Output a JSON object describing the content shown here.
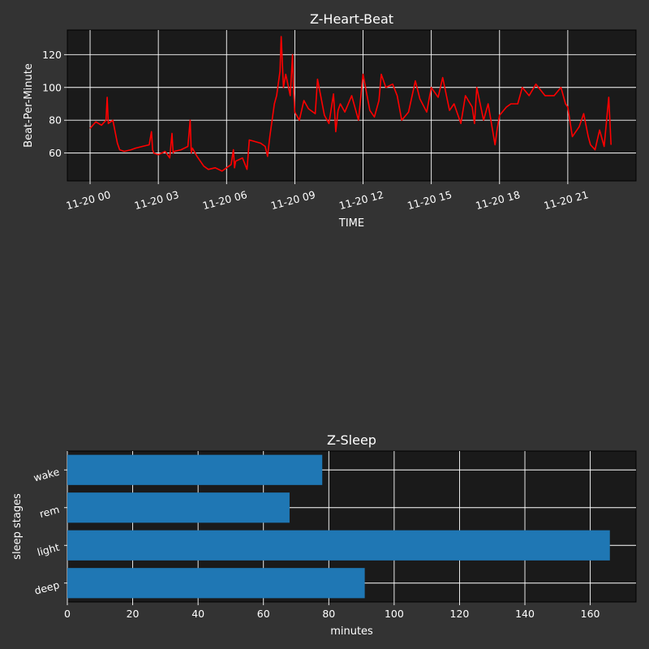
{
  "chart_data": [
    {
      "type": "line",
      "title": "Z-Heart-Beat",
      "xlabel": "TIME",
      "ylabel": "Beat-Per-Minute",
      "grid": true,
      "line_color": "#ff0000",
      "background": "#1a1a1a",
      "xlim": [
        -1.0,
        24.0
      ],
      "ylim": [
        43,
        135
      ],
      "x_ticks": [
        0,
        3,
        6,
        9,
        12,
        15,
        18,
        21
      ],
      "x_tick_labels": [
        "11-20 00",
        "11-20 03",
        "11-20 06",
        "11-20 09",
        "11-20 12",
        "11-20 15",
        "11-20 18",
        "11-20 21"
      ],
      "y_ticks": [
        60,
        80,
        100,
        120
      ],
      "y_tick_labels": [
        "60",
        "80",
        "100",
        "120"
      ],
      "series": [
        {
          "x": [
            0.0,
            0.25,
            0.5,
            0.7,
            0.75,
            0.8,
            1.0,
            1.2,
            1.3,
            1.5,
            1.8,
            2.0,
            2.3,
            2.6,
            2.7,
            2.75,
            2.8,
            3.0,
            3.3,
            3.5,
            3.6,
            3.65,
            3.7,
            4.0,
            4.3,
            4.4,
            4.45,
            4.5,
            4.7,
            5.0,
            5.2,
            5.5,
            5.8,
            6.0,
            6.2,
            6.3,
            6.35,
            6.4,
            6.7,
            6.9,
            7.0,
            7.5,
            7.7,
            7.8,
            7.9,
            8.0,
            8.1,
            8.2,
            8.35,
            8.4,
            8.5,
            8.6,
            8.8,
            8.9,
            8.95,
            9.0,
            9.2,
            9.4,
            9.6,
            9.9,
            10.0,
            10.3,
            10.5,
            10.7,
            10.8,
            10.9,
            11.0,
            11.2,
            11.5,
            11.8,
            12.0,
            12.3,
            12.5,
            12.7,
            12.8,
            13.0,
            13.3,
            13.5,
            13.7,
            14.0,
            14.3,
            14.5,
            14.8,
            15.0,
            15.3,
            15.5,
            15.8,
            16.0,
            16.3,
            16.5,
            16.8,
            16.9,
            17.0,
            17.3,
            17.5,
            17.8,
            17.9,
            18.0,
            18.3,
            18.5,
            18.8,
            19.0,
            19.3,
            19.6,
            20.0,
            20.4,
            20.7,
            20.9,
            21.0,
            21.2,
            21.5,
            21.7,
            21.9,
            22.0,
            22.2,
            22.4,
            22.6,
            22.8,
            22.9
          ],
          "y": [
            75,
            79,
            77,
            80,
            94,
            78,
            80,
            66,
            62,
            61,
            62,
            63,
            64,
            65,
            73,
            62,
            60,
            59,
            61,
            57,
            72,
            60,
            61,
            62,
            64,
            80,
            60,
            63,
            58,
            52,
            50,
            51,
            49,
            51,
            53,
            62,
            51,
            55,
            57,
            50,
            68,
            66,
            64,
            58,
            70,
            80,
            90,
            95,
            110,
            131,
            100,
            108,
            95,
            120,
            98,
            85,
            80,
            92,
            87,
            84,
            105,
            83,
            78,
            96,
            73,
            86,
            90,
            85,
            95,
            80,
            108,
            86,
            82,
            92,
            108,
            100,
            102,
            95,
            80,
            85,
            104,
            93,
            85,
            100,
            94,
            106,
            86,
            90,
            78,
            95,
            88,
            78,
            100,
            80,
            90,
            65,
            75,
            83,
            88,
            90,
            90,
            100,
            95,
            102,
            95,
            95,
            100,
            90,
            88,
            70,
            76,
            84,
            70,
            65,
            62,
            74,
            64,
            94,
            65
          ]
        }
      ]
    },
    {
      "type": "bar",
      "orientation": "horizontal",
      "title": "Z-Sleep",
      "xlabel": "minutes",
      "ylabel": "sleep stages",
      "grid": true,
      "bar_color": "#1f77b4",
      "background": "#1a1a1a",
      "categories": [
        "deep",
        "light",
        "rem",
        "wake"
      ],
      "values": [
        91,
        166,
        68,
        78
      ],
      "xlim": [
        0,
        174
      ],
      "x_ticks": [
        0,
        20,
        40,
        60,
        80,
        100,
        120,
        140,
        160
      ],
      "x_tick_labels": [
        "0",
        "20",
        "40",
        "60",
        "80",
        "100",
        "120",
        "140",
        "160"
      ]
    }
  ]
}
